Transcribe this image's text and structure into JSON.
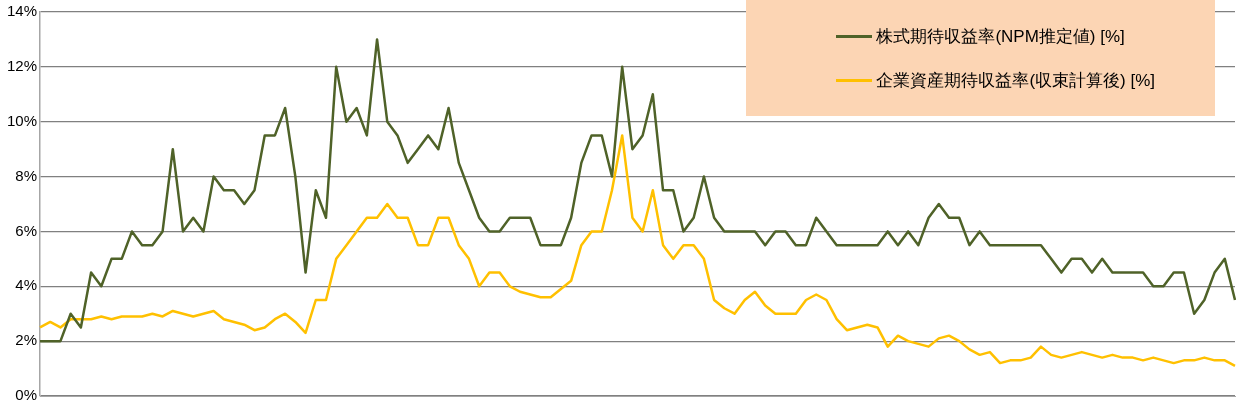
{
  "chart_data": {
    "type": "line",
    "categories": [
      null,
      null,
      null,
      null,
      null,
      null,
      null,
      null,
      null,
      null,
      null,
      null,
      null,
      null,
      null,
      null,
      null,
      null,
      null,
      null,
      null,
      null,
      null,
      null,
      null,
      null,
      null,
      null,
      null,
      null,
      null,
      null,
      null,
      null,
      null,
      null,
      null,
      null,
      null,
      null,
      null,
      null,
      null,
      null,
      null,
      null,
      null,
      null,
      null,
      null,
      null,
      null,
      null,
      null,
      null,
      null,
      null,
      null,
      null,
      null,
      null,
      null,
      null,
      null,
      null,
      null,
      null,
      null,
      null,
      null,
      null,
      null,
      null,
      null,
      null,
      null,
      null,
      null,
      null,
      null,
      null,
      null,
      null,
      null,
      null,
      null,
      null,
      null,
      null,
      null,
      null,
      null,
      null,
      null,
      null,
      null,
      null,
      null,
      null,
      null,
      null,
      null,
      null,
      null,
      null,
      null,
      null,
      null,
      null,
      null,
      null,
      null,
      null,
      null,
      null,
      null,
      null,
      null
    ],
    "series": [
      {
        "name": "株式期待収益率(NPM推定値) [%]",
        "color": "#4f6228",
        "values": [
          2.0,
          2.0,
          2.0,
          3.0,
          2.5,
          4.5,
          4.0,
          5.0,
          5.0,
          6.0,
          5.5,
          5.5,
          6.0,
          9.0,
          6.0,
          6.5,
          6.0,
          8.0,
          7.5,
          7.5,
          7.0,
          7.5,
          9.5,
          9.5,
          10.5,
          8.0,
          4.5,
          7.5,
          6.5,
          12.0,
          10.0,
          10.5,
          9.5,
          13.0,
          10.0,
          9.5,
          8.5,
          9.0,
          9.5,
          9.0,
          10.5,
          8.5,
          7.5,
          6.5,
          6.0,
          6.0,
          6.5,
          6.5,
          6.5,
          5.5,
          5.5,
          5.5,
          6.5,
          8.5,
          9.5,
          9.5,
          8.0,
          12.0,
          9.0,
          9.5,
          11.0,
          7.5,
          7.5,
          6.0,
          6.5,
          8.0,
          6.5,
          6.0,
          6.0,
          6.0,
          6.0,
          5.5,
          6.0,
          6.0,
          5.5,
          5.5,
          6.5,
          6.0,
          5.5,
          5.5,
          5.5,
          5.5,
          5.5,
          6.0,
          5.5,
          6.0,
          5.5,
          6.5,
          7.0,
          6.5,
          6.5,
          5.5,
          6.0,
          5.5,
          5.5,
          5.5,
          5.5,
          5.5,
          5.5,
          5.0,
          4.5,
          5.0,
          5.0,
          4.5,
          5.0,
          4.5,
          4.5,
          4.5,
          4.5,
          4.0,
          4.0,
          4.5,
          4.5,
          3.0,
          3.5,
          4.5,
          5.0,
          3.5
        ]
      },
      {
        "name": "企業資産期待収益率(収束計算後) [%]",
        "color": "#ffc000",
        "values": [
          2.5,
          2.7,
          2.5,
          2.8,
          2.8,
          2.8,
          2.9,
          2.8,
          2.9,
          2.9,
          2.9,
          3.0,
          2.9,
          3.1,
          3.0,
          2.9,
          3.0,
          3.1,
          2.8,
          2.7,
          2.6,
          2.4,
          2.5,
          2.8,
          3.0,
          2.7,
          2.3,
          3.5,
          3.5,
          5.0,
          5.5,
          6.0,
          6.5,
          6.5,
          7.0,
          6.5,
          6.5,
          5.5,
          5.5,
          6.5,
          6.5,
          5.5,
          5.0,
          4.0,
          4.5,
          4.5,
          4.0,
          3.8,
          3.7,
          3.6,
          3.6,
          3.9,
          4.2,
          5.5,
          6.0,
          6.0,
          7.5,
          9.5,
          6.5,
          6.0,
          7.5,
          5.5,
          5.0,
          5.5,
          5.5,
          5.0,
          3.5,
          3.2,
          3.0,
          3.5,
          3.8,
          3.3,
          3.0,
          3.0,
          3.0,
          3.5,
          3.7,
          3.5,
          2.8,
          2.4,
          2.5,
          2.6,
          2.5,
          1.8,
          2.2,
          2.0,
          1.9,
          1.8,
          2.1,
          2.2,
          2.0,
          1.7,
          1.5,
          1.6,
          1.2,
          1.3,
          1.3,
          1.4,
          1.8,
          1.5,
          1.4,
          1.5,
          1.6,
          1.5,
          1.4,
          1.5,
          1.4,
          1.4,
          1.3,
          1.4,
          1.3,
          1.2,
          1.3,
          1.3,
          1.4,
          1.3,
          1.3,
          1.1
        ]
      }
    ],
    "ylim": [
      0,
      14
    ],
    "yticks": [
      {
        "value": 0,
        "label": "0%"
      },
      {
        "value": 2,
        "label": "2%"
      },
      {
        "value": 4,
        "label": "4%"
      },
      {
        "value": 6,
        "label": "6%"
      },
      {
        "value": 8,
        "label": "8%"
      },
      {
        "value": 10,
        "label": "10%"
      },
      {
        "value": 12,
        "label": "12%"
      },
      {
        "value": 14,
        "label": "14%"
      }
    ],
    "grid": "y",
    "legend": "top right",
    "marker": "none",
    "line_style": "solid"
  }
}
